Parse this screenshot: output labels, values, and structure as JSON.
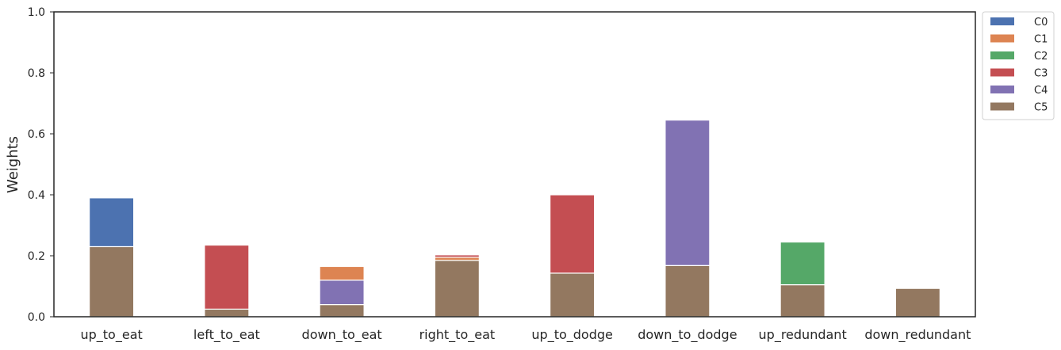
{
  "chart_data": {
    "type": "bar",
    "stacked": true,
    "title": "",
    "xlabel": "",
    "ylabel": "Weights",
    "ylim": [
      0,
      1
    ],
    "yticks": [
      0.0,
      0.2,
      0.4,
      0.6,
      0.8,
      1.0
    ],
    "ytick_labels": [
      "0.0",
      "0.2",
      "0.4",
      "0.6",
      "0.8",
      "1.0"
    ],
    "categories": [
      "up_to_eat",
      "left_to_eat",
      "down_to_eat",
      "right_to_eat",
      "up_to_dodge",
      "down_to_dodge",
      "up_redundant",
      "down_redundant"
    ],
    "series": [
      {
        "name": "C5",
        "color": "#937860",
        "values": [
          0.23,
          0.025,
          0.04,
          0.185,
          0.143,
          0.168,
          0.105,
          0.093
        ]
      },
      {
        "name": "C4",
        "color": "#8172b3",
        "values": [
          0,
          0,
          0.08,
          0,
          0,
          0.477,
          0,
          0
        ]
      },
      {
        "name": "C1",
        "color": "#dd8452",
        "values": [
          0,
          0,
          0.045,
          0.01,
          0,
          0,
          0,
          0
        ]
      },
      {
        "name": "C2",
        "color": "#55a868",
        "values": [
          0,
          0,
          0,
          0,
          0,
          0,
          0.14,
          0
        ]
      },
      {
        "name": "C3",
        "color": "#c44e52",
        "values": [
          0,
          0.21,
          0,
          0.008,
          0.257,
          0,
          0,
          0
        ]
      },
      {
        "name": "C0",
        "color": "#4c72b0",
        "values": [
          0.16,
          0,
          0,
          0,
          0,
          0,
          0,
          0
        ]
      }
    ],
    "legend": {
      "placement": "outside-top-right",
      "entries": [
        {
          "name": "C0",
          "color": "#4c72b0"
        },
        {
          "name": "C1",
          "color": "#dd8452"
        },
        {
          "name": "C2",
          "color": "#55a868"
        },
        {
          "name": "C3",
          "color": "#c44e52"
        },
        {
          "name": "C4",
          "color": "#8172b3"
        },
        {
          "name": "C5",
          "color": "#937860"
        }
      ]
    },
    "grid": false
  }
}
